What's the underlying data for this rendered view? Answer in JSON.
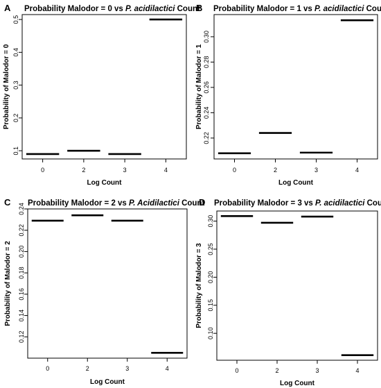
{
  "chart_data": [
    {
      "panel": "A",
      "type": "step",
      "title": {
        "prefix": "Probability Malodor = 0 vs ",
        "italic": "P. acidilactici",
        "suffix": " Count"
      },
      "xlabel": "Log Count",
      "ylabel": "Probability of Malodor = 0",
      "categories": [
        "0",
        "2",
        "3",
        "4"
      ],
      "values": [
        0.09,
        0.1,
        0.09,
        0.5
      ],
      "ylim": [
        0.075,
        0.515
      ],
      "yticks": [
        0.1,
        0.2,
        0.3,
        0.4,
        0.5
      ],
      "ytick_labels": [
        "0.1",
        "0.2",
        "0.3",
        "0.4",
        "0.5"
      ]
    },
    {
      "panel": "B",
      "type": "step",
      "title": {
        "prefix": "Probability Malodor = 1 vs ",
        "italic": "P. acidilactici",
        "suffix": " Count"
      },
      "xlabel": "Log Count",
      "ylabel": "Probability of Malodor = 1",
      "categories": [
        "0",
        "2",
        "3",
        "4"
      ],
      "values": [
        0.208,
        0.224,
        0.2085,
        0.313
      ],
      "ylim": [
        0.2035,
        0.3175
      ],
      "yticks": [
        0.22,
        0.24,
        0.26,
        0.28,
        0.3
      ],
      "ytick_labels": [
        "0.22",
        "0.24",
        "0.26",
        "0.28",
        "0.30"
      ]
    },
    {
      "panel": "C",
      "type": "step",
      "title": {
        "prefix": "Probability Malodor = 2 vs ",
        "italic": "P. Acidilactici",
        "suffix": " Count"
      },
      "xlabel": "Log Count",
      "ylabel": "Probability of Malodor = 2",
      "categories": [
        "0",
        "2",
        "3",
        "4"
      ],
      "values": [
        0.229,
        0.234,
        0.229,
        0.105
      ],
      "ylim": [
        0.1,
        0.24
      ],
      "yticks": [
        0.12,
        0.14,
        0.16,
        0.18,
        0.2,
        0.22,
        0.24
      ],
      "ytick_labels": [
        "0.12",
        "0.14",
        "0.16",
        "0.18",
        "0.20",
        "0.22",
        "0.24"
      ]
    },
    {
      "panel": "D",
      "type": "step",
      "title": {
        "prefix": "Probability Malodor = 3 vs ",
        "italic": "P. acidilactici",
        "suffix": " Count"
      },
      "xlabel": "Log Count",
      "ylabel": "Probability of Malodor = 3",
      "categories": [
        "0",
        "2",
        "3",
        "4"
      ],
      "values": [
        0.309,
        0.297,
        0.308,
        0.061
      ],
      "ylim": [
        0.052,
        0.318
      ],
      "yticks": [
        0.1,
        0.15,
        0.2,
        0.25,
        0.3
      ],
      "ytick_labels": [
        "0.10",
        "0.15",
        "0.20",
        "0.25",
        "0.30"
      ]
    }
  ]
}
